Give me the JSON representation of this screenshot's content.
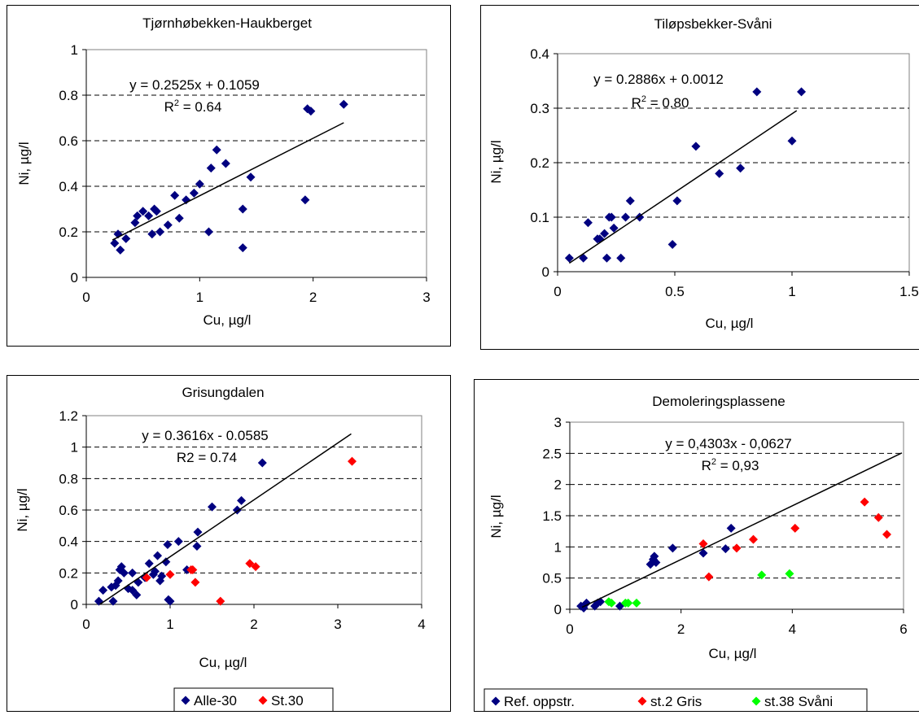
{
  "chart_data": [
    {
      "type": "scatter",
      "title": "Tjørnhøbekken-Haukberget",
      "xlabel": "Cu, µg/l",
      "ylabel": "Ni, µg/l",
      "xlim": [
        0,
        3
      ],
      "ylim": [
        0,
        1
      ],
      "xticks": [
        0,
        1,
        2,
        3
      ],
      "xtick_labels": [
        "0",
        "1",
        "2",
        "3"
      ],
      "yticks": [
        0,
        0.2,
        0.4,
        0.6,
        0.8,
        1
      ],
      "ytick_labels": [
        "0",
        "0.2",
        "0.4",
        "0.6",
        "0.8",
        "1"
      ],
      "grid": "horizontal-dashed",
      "annotation": {
        "equation": "y = 0.2525x + 0.1059",
        "r2_label": "R",
        "r2_sup": "2",
        "r2_value": " = 0.64"
      },
      "trendline": {
        "slope": 0.2525,
        "intercept": 0.1059,
        "x_range": [
          0.23,
          2.27
        ]
      },
      "legend": null,
      "series": [
        {
          "color": "#000080",
          "points": [
            [
              0.25,
              0.15
            ],
            [
              0.28,
              0.19
            ],
            [
              0.3,
              0.12
            ],
            [
              0.35,
              0.17
            ],
            [
              0.43,
              0.24
            ],
            [
              0.45,
              0.27
            ],
            [
              0.5,
              0.29
            ],
            [
              0.55,
              0.27
            ],
            [
              0.58,
              0.19
            ],
            [
              0.6,
              0.3
            ],
            [
              0.62,
              0.29
            ],
            [
              0.65,
              0.2
            ],
            [
              0.72,
              0.23
            ],
            [
              0.78,
              0.36
            ],
            [
              0.82,
              0.26
            ],
            [
              0.88,
              0.34
            ],
            [
              0.95,
              0.37
            ],
            [
              1.0,
              0.41
            ],
            [
              1.08,
              0.2
            ],
            [
              1.1,
              0.48
            ],
            [
              1.15,
              0.56
            ],
            [
              1.23,
              0.5
            ],
            [
              1.38,
              0.3
            ],
            [
              1.38,
              0.13
            ],
            [
              1.45,
              0.44
            ],
            [
              1.93,
              0.34
            ],
            [
              1.95,
              0.74
            ],
            [
              1.98,
              0.73
            ],
            [
              2.27,
              0.76
            ]
          ]
        }
      ]
    },
    {
      "type": "scatter",
      "title": "Tiløpsbekker-Svåni",
      "xlabel": "Cu, µg/l",
      "ylabel": "Ni, µg/l",
      "xlim": [
        0,
        1.5
      ],
      "ylim": [
        0,
        0.4
      ],
      "xticks": [
        0,
        0.5,
        1,
        1.5
      ],
      "xtick_labels": [
        "0",
        "0.5",
        "1",
        "1.5"
      ],
      "yticks": [
        0,
        0.1,
        0.2,
        0.3,
        0.4
      ],
      "ytick_labels": [
        "0",
        "0.1",
        "0.2",
        "0.3",
        "0.4"
      ],
      "grid": "horizontal-dashed",
      "annotation": {
        "equation": "y = 0.2886x + 0.0012",
        "r2_label": "R",
        "r2_sup": "2",
        "r2_value": " = 0.80"
      },
      "trendline": {
        "slope": 0.2886,
        "intercept": 0.0012,
        "x_range": [
          0.05,
          1.02
        ]
      },
      "legend": null,
      "series": [
        {
          "color": "#000080",
          "points": [
            [
              0.05,
              0.025
            ],
            [
              0.11,
              0.025
            ],
            [
              0.13,
              0.09
            ],
            [
              0.17,
              0.06
            ],
            [
              0.18,
              0.06
            ],
            [
              0.2,
              0.07
            ],
            [
              0.21,
              0.025
            ],
            [
              0.22,
              0.1
            ],
            [
              0.23,
              0.1
            ],
            [
              0.24,
              0.08
            ],
            [
              0.27,
              0.025
            ],
            [
              0.29,
              0.1
            ],
            [
              0.31,
              0.13
            ],
            [
              0.35,
              0.1
            ],
            [
              0.49,
              0.05
            ],
            [
              0.51,
              0.13
            ],
            [
              0.59,
              0.23
            ],
            [
              0.69,
              0.18
            ],
            [
              0.78,
              0.19
            ],
            [
              0.85,
              0.33
            ],
            [
              1.0,
              0.24
            ],
            [
              1.04,
              0.33
            ]
          ]
        }
      ]
    },
    {
      "type": "scatter",
      "title": "Grisungdalen",
      "xlabel": "Cu, µg/l",
      "ylabel": "Ni, µg/l",
      "xlim": [
        0,
        4
      ],
      "ylim": [
        0,
        1.2
      ],
      "xticks": [
        0,
        1,
        2,
        3,
        4
      ],
      "xtick_labels": [
        "0",
        "1",
        "2",
        "3",
        "4"
      ],
      "yticks": [
        0,
        0.2,
        0.4,
        0.6,
        0.8,
        1,
        1.2
      ],
      "ytick_labels": [
        "0",
        "0.2",
        "0.4",
        "0.6",
        "0.8",
        "1",
        "1.2"
      ],
      "grid": "horizontal-dashed",
      "annotation": {
        "equation": "y = 0.3616x - 0.0585",
        "r2_label": "R2",
        "r2_sup": "",
        "r2_value": " = 0.74"
      },
      "trendline": {
        "slope": 0.3616,
        "intercept": -0.0585,
        "x_range": [
          0.16,
          3.16
        ]
      },
      "legend": {
        "position": "bottom",
        "entries": [
          "Alle-30",
          "St.30"
        ]
      },
      "series": [
        {
          "name": "Alle-30",
          "color": "#000080",
          "points": [
            [
              0.15,
              0.02
            ],
            [
              0.2,
              0.09
            ],
            [
              0.3,
              0.11
            ],
            [
              0.32,
              0.02
            ],
            [
              0.35,
              0.12
            ],
            [
              0.38,
              0.15
            ],
            [
              0.4,
              0.22
            ],
            [
              0.42,
              0.24
            ],
            [
              0.45,
              0.2
            ],
            [
              0.5,
              0.1
            ],
            [
              0.55,
              0.09
            ],
            [
              0.55,
              0.2
            ],
            [
              0.6,
              0.06
            ],
            [
              0.62,
              0.14
            ],
            [
              0.7,
              0.17
            ],
            [
              0.75,
              0.26
            ],
            [
              0.8,
              0.19
            ],
            [
              0.82,
              0.21
            ],
            [
              0.85,
              0.31
            ],
            [
              0.88,
              0.15
            ],
            [
              0.9,
              0.18
            ],
            [
              0.95,
              0.27
            ],
            [
              0.97,
              0.38
            ],
            [
              0.98,
              0.03
            ],
            [
              1.0,
              0.02
            ],
            [
              1.1,
              0.4
            ],
            [
              1.2,
              0.22
            ],
            [
              1.32,
              0.37
            ],
            [
              1.33,
              0.46
            ],
            [
              1.5,
              0.62
            ],
            [
              1.8,
              0.6
            ],
            [
              1.85,
              0.66
            ],
            [
              2.1,
              0.9
            ]
          ]
        },
        {
          "name": "St.30",
          "color": "#ff0000",
          "points": [
            [
              0.72,
              0.17
            ],
            [
              1.0,
              0.19
            ],
            [
              1.25,
              0.22
            ],
            [
              1.27,
              0.22
            ],
            [
              1.3,
              0.14
            ],
            [
              1.6,
              0.02
            ],
            [
              1.95,
              0.26
            ],
            [
              2.02,
              0.24
            ],
            [
              3.17,
              0.91
            ]
          ]
        }
      ]
    },
    {
      "type": "scatter",
      "title": "Demoleringsplassene",
      "xlabel": "Cu, µg/l",
      "ylabel": "Ni, µg/l",
      "xlim": [
        0,
        6
      ],
      "ylim": [
        0,
        3
      ],
      "xticks": [
        0,
        2,
        4,
        6
      ],
      "xtick_labels": [
        "0",
        "2",
        "4",
        "6"
      ],
      "yticks": [
        0,
        0.5,
        1,
        1.5,
        2,
        2.5,
        3
      ],
      "ytick_labels": [
        "0",
        "0.5",
        "1",
        "1.5",
        "2",
        "2.5",
        "3"
      ],
      "grid": "horizontal-dashed",
      "annotation": {
        "equation": "y = 0,4303x - 0,0627",
        "r2_label": "R",
        "r2_sup": "2",
        "r2_value": " = 0,93"
      },
      "trendline": {
        "slope": 0.4303,
        "intercept": -0.0627,
        "x_range": [
          0.22,
          5.97
        ]
      },
      "legend": {
        "position": "bottom",
        "entries": [
          "Ref. oppstr.",
          "st.2 Gris",
          "st.38 Svåni"
        ]
      },
      "series": [
        {
          "name": "Ref. oppstr.",
          "color": "#000080",
          "points": [
            [
              0.2,
              0.05
            ],
            [
              0.25,
              0.02
            ],
            [
              0.3,
              0.1
            ],
            [
              0.45,
              0.05
            ],
            [
              0.5,
              0.1
            ],
            [
              0.55,
              0.12
            ],
            [
              0.9,
              0.05
            ],
            [
              1.45,
              0.72
            ],
            [
              1.5,
              0.8
            ],
            [
              1.52,
              0.85
            ],
            [
              1.55,
              0.75
            ],
            [
              1.85,
              0.98
            ],
            [
              2.4,
              0.9
            ],
            [
              2.8,
              0.97
            ],
            [
              2.9,
              1.3
            ]
          ]
        },
        {
          "name": "st.2 Gris",
          "color": "#ff0000",
          "points": [
            [
              2.4,
              1.05
            ],
            [
              2.5,
              0.52
            ],
            [
              3.0,
              0.98
            ],
            [
              3.3,
              1.12
            ],
            [
              4.05,
              1.3
            ],
            [
              5.3,
              1.72
            ],
            [
              5.55,
              1.47
            ],
            [
              5.7,
              1.2
            ]
          ]
        },
        {
          "name": "st.38 Svåni",
          "color": "#00ff00",
          "points": [
            [
              0.7,
              0.12
            ],
            [
              0.75,
              0.1
            ],
            [
              1.0,
              0.1
            ],
            [
              1.05,
              0.1
            ],
            [
              1.2,
              0.1
            ],
            [
              3.45,
              0.55
            ],
            [
              3.95,
              0.57
            ]
          ]
        }
      ]
    }
  ]
}
